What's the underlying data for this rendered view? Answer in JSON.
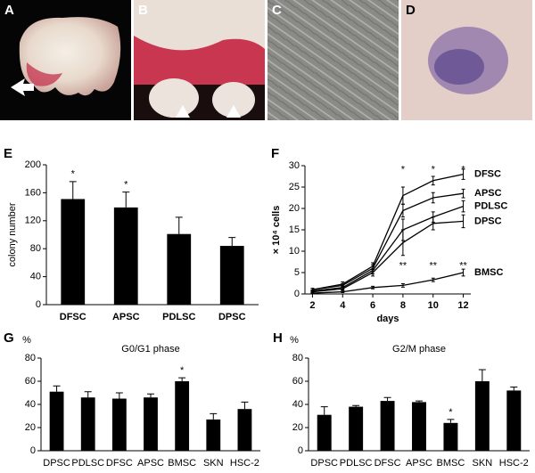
{
  "photos": [
    {
      "panel": "A"
    },
    {
      "panel": "B"
    },
    {
      "panel": "C"
    },
    {
      "panel": "D"
    }
  ],
  "chart_data": [
    {
      "type": "bar",
      "panel": "E",
      "ylabel": "colony number",
      "categories": [
        "DFSC",
        "APSC",
        "PDLSC",
        "DPSC"
      ],
      "values": [
        151,
        139,
        101,
        84
      ],
      "errors": [
        25,
        22,
        24,
        12
      ],
      "marks": [
        "*",
        "*",
        null,
        null
      ],
      "color": "#000000",
      "ylim": [
        0,
        200
      ],
      "yticks": [
        0,
        40,
        80,
        120,
        160,
        200
      ]
    },
    {
      "type": "line",
      "panel": "F",
      "xlabel": "days",
      "ylabel": "× 10⁴ cells",
      "x": [
        2,
        4,
        6,
        8,
        10,
        12
      ],
      "xlim": [
        1.5,
        12.5
      ],
      "xticks": [
        2,
        4,
        6,
        8,
        10,
        12
      ],
      "ylim": [
        0,
        30
      ],
      "yticks": [
        0,
        5,
        10,
        15,
        20,
        25,
        30
      ],
      "color": "#000000",
      "series": [
        {
          "name": "DFSC",
          "values": [
            1,
            2.3,
            6.5,
            23,
            26.5,
            28
          ],
          "errors": [
            0.3,
            0.5,
            0.8,
            2,
            1,
            1.2
          ]
        },
        {
          "name": "APSC",
          "values": [
            1,
            2,
            6,
            19.5,
            22.5,
            23.5
          ],
          "errors": [
            0.3,
            0.4,
            0.8,
            1.5,
            1.2,
            1
          ]
        },
        {
          "name": "PDLSC",
          "values": [
            0.7,
            1.5,
            5.5,
            15,
            18,
            20.5
          ],
          "errors": [
            0.2,
            0.4,
            0.8,
            2.5,
            1.2,
            1.3
          ]
        },
        {
          "name": "DPSC",
          "values": [
            0.5,
            1.2,
            5,
            12,
            16.5,
            17
          ],
          "errors": [
            0.2,
            0.3,
            0.8,
            3,
            1.5,
            1.5
          ]
        },
        {
          "name": "BMSC",
          "values": [
            0.2,
            0.5,
            1.5,
            2,
            3.3,
            5
          ],
          "errors": [
            0.1,
            0.2,
            0.3,
            0.4,
            0.4,
            0.8
          ]
        }
      ],
      "annotations": [
        {
          "x": 8,
          "y": 29,
          "text": "*"
        },
        {
          "x": 10,
          "y": 29,
          "text": "*"
        },
        {
          "x": 12,
          "y": 29,
          "text": "*"
        },
        {
          "x": 8,
          "y": 6.5,
          "text": "**"
        },
        {
          "x": 10,
          "y": 6.5,
          "text": "**"
        },
        {
          "x": 12,
          "y": 6.5,
          "text": "**"
        }
      ]
    },
    {
      "type": "bar",
      "panel": "G",
      "title": "G0/G1 phase",
      "ylabel": "%",
      "categories": [
        "DPSC",
        "PDLSC",
        "DFSC",
        "APSC",
        "BMSC",
        "SKN",
        "HSC-2"
      ],
      "values": [
        51,
        46,
        45,
        46,
        60,
        27,
        36
      ],
      "errors": [
        5,
        5,
        5,
        3,
        3,
        5,
        6
      ],
      "marks": [
        null,
        null,
        null,
        null,
        "*",
        null,
        null
      ],
      "color": "#000000",
      "ylim": [
        0,
        80
      ],
      "yticks": [
        0,
        20,
        40,
        60,
        80
      ]
    },
    {
      "type": "bar",
      "panel": "H",
      "title": "G2/M phase",
      "ylabel": "%",
      "categories": [
        "DPSC",
        "PDLSC",
        "DFSC",
        "APSC",
        "BMSC",
        "SKN",
        "HSC-2"
      ],
      "values": [
        31,
        38,
        43,
        42,
        24,
        60,
        52
      ],
      "errors": [
        7,
        1,
        3,
        1,
        3,
        10,
        3
      ],
      "marks": [
        null,
        null,
        null,
        null,
        "*",
        null,
        null
      ],
      "color": "#000000",
      "ylim": [
        0,
        80
      ],
      "yticks": [
        0,
        20,
        40,
        60,
        80
      ]
    }
  ]
}
